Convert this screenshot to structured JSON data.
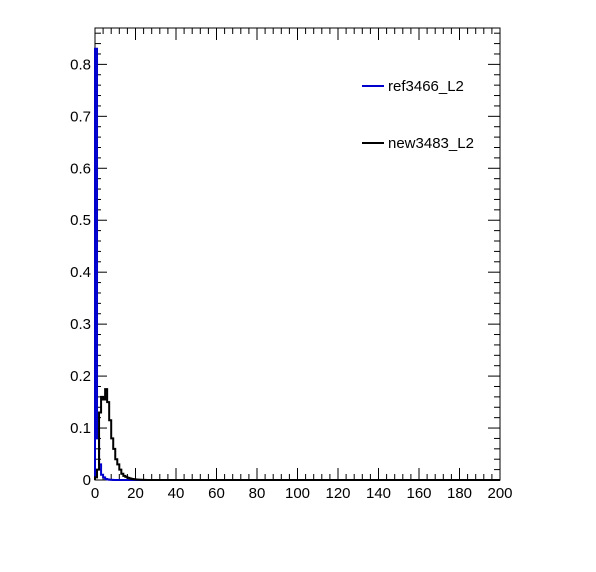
{
  "chart_data": {
    "type": "histogram",
    "title": "",
    "xlabel": "",
    "ylabel": "",
    "xlim": [
      0,
      200
    ],
    "ylim": [
      0,
      0.87
    ],
    "x_ticks": [
      "0",
      "20",
      "40",
      "60",
      "80",
      "100",
      "120",
      "140",
      "160",
      "180",
      "200"
    ],
    "y_ticks": [
      "0",
      "0.1",
      "0.2",
      "0.3",
      "0.4",
      "0.5",
      "0.6",
      "0.7",
      "0.8"
    ],
    "grid": false,
    "legend_position": "top-right",
    "bin_width": 1,
    "series": [
      {
        "name": "ref3466_L2",
        "color": "#0000cc",
        "bins_start": 0,
        "values": [
          0.83,
          0.08,
          0.03,
          0.01,
          0.005,
          0.002,
          0.001,
          0.0005,
          0.0002
        ]
      },
      {
        "name": "new3483_L2",
        "color": "#000000",
        "bins_start": 0,
        "values": [
          0.005,
          0.02,
          0.13,
          0.16,
          0.155,
          0.175,
          0.15,
          0.115,
          0.08,
          0.06,
          0.04,
          0.03,
          0.02,
          0.012,
          0.008,
          0.006,
          0.004,
          0.003,
          0.002,
          0.0015,
          0.001,
          0.0008,
          0.0005,
          0.0003,
          0.0002
        ]
      }
    ]
  }
}
